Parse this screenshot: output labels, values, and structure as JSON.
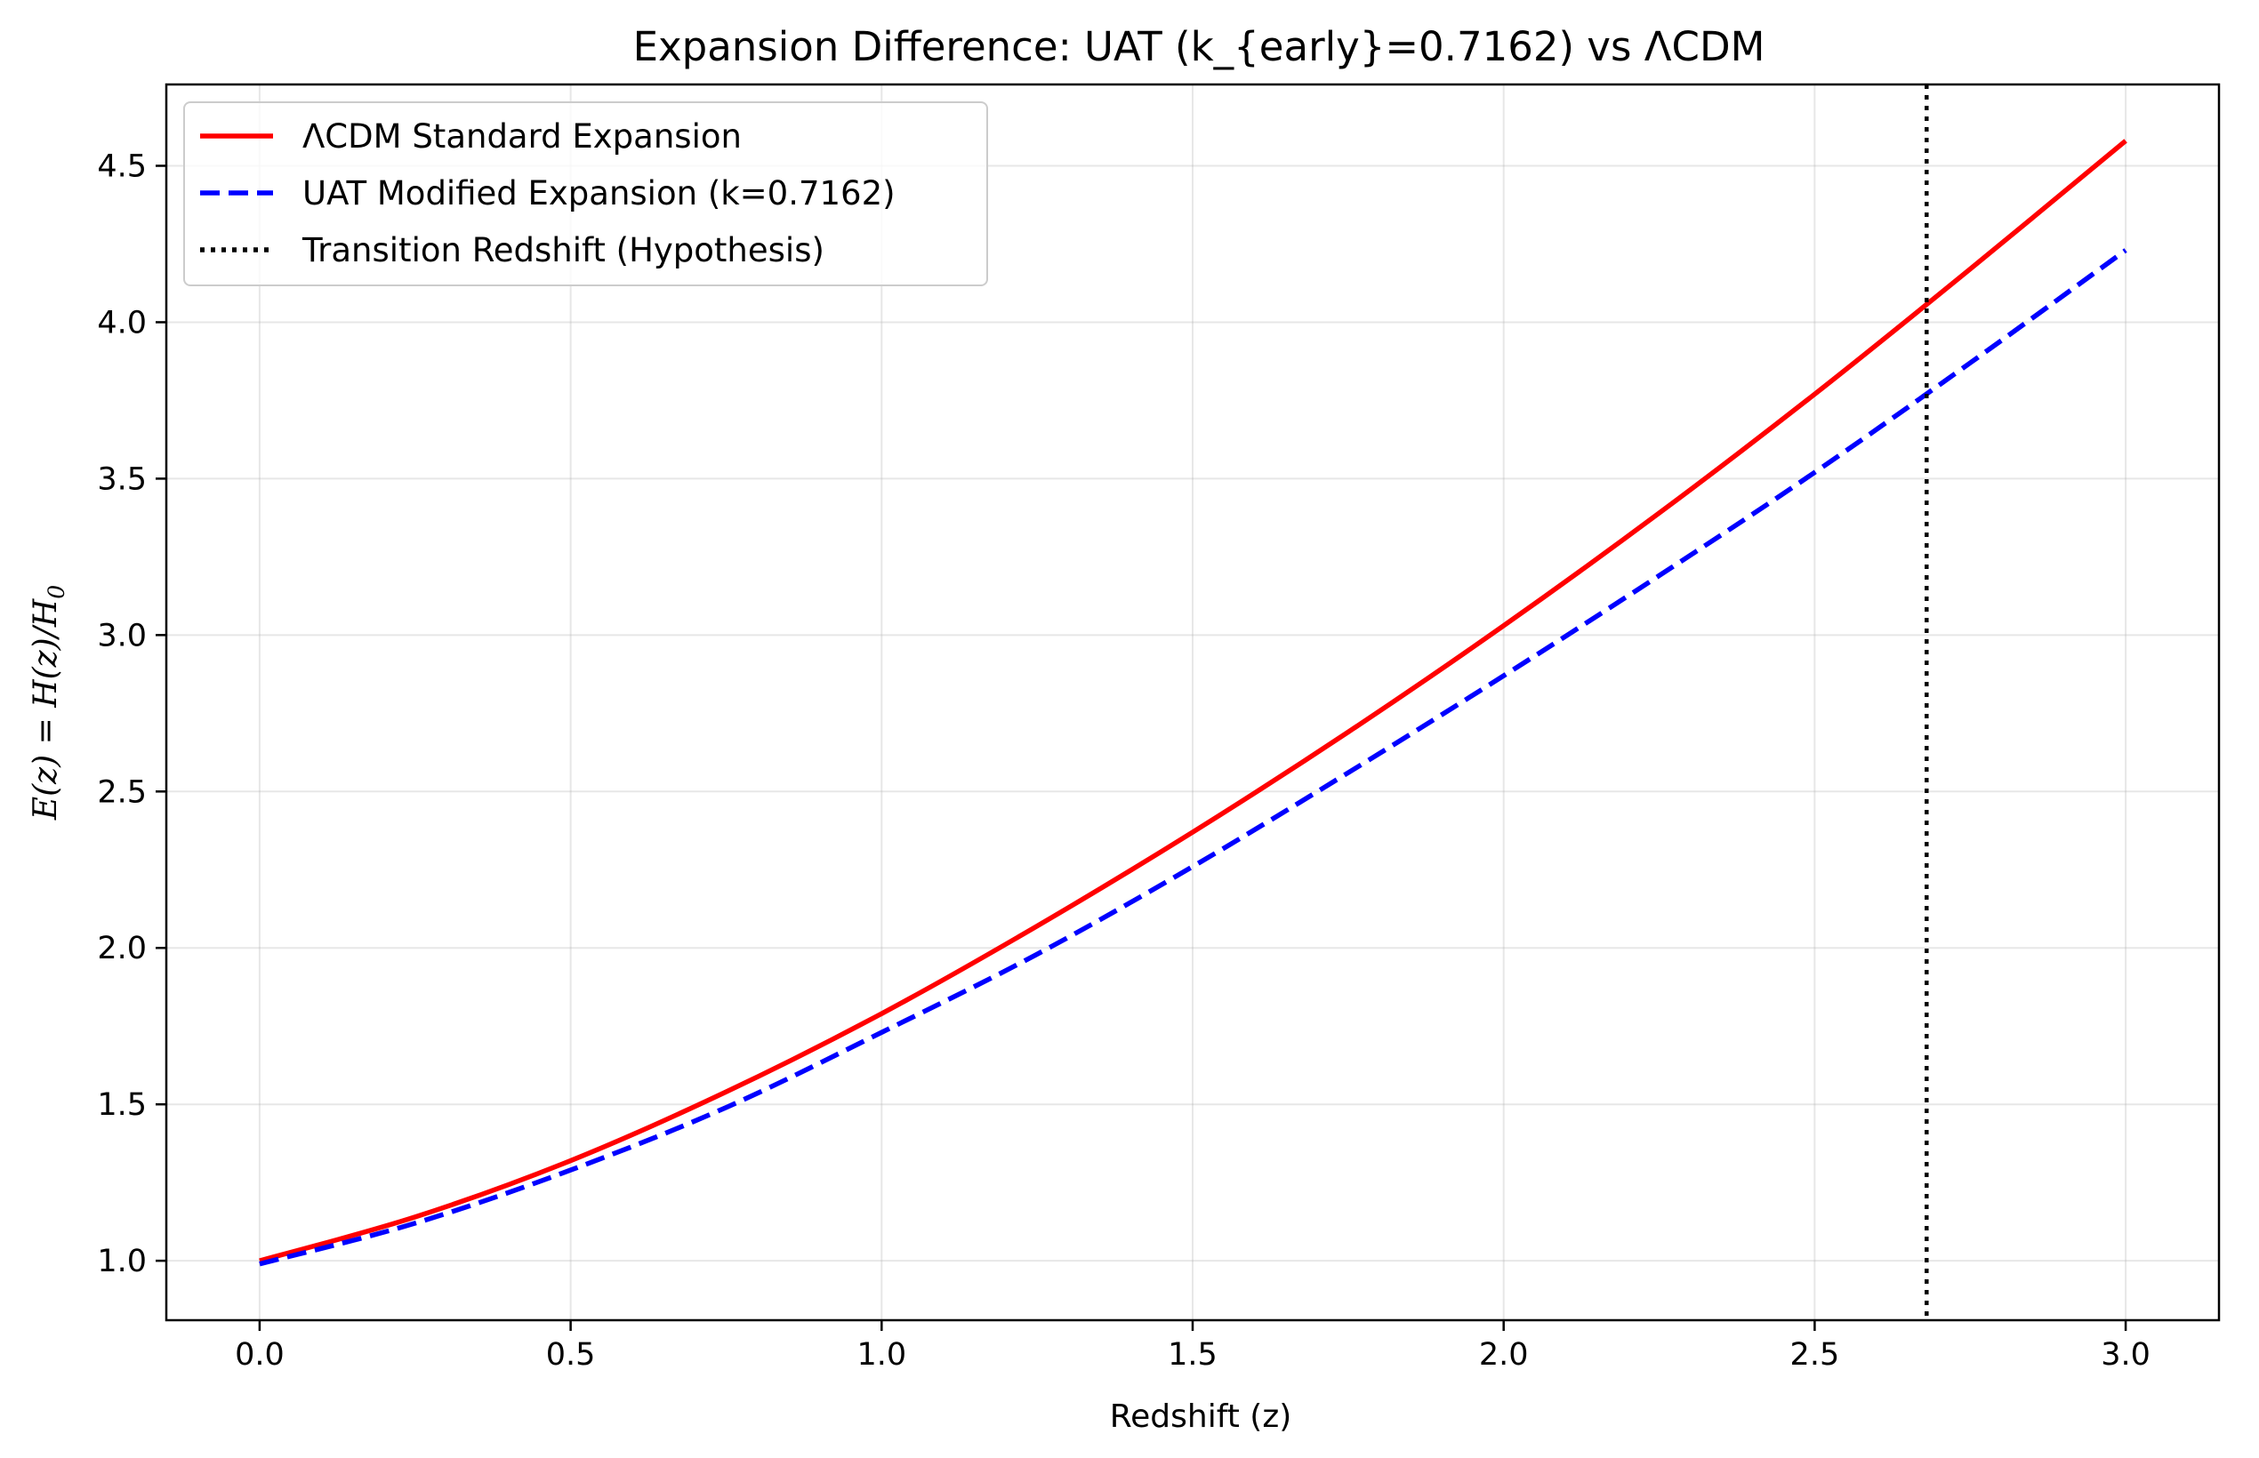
{
  "chart_data": {
    "type": "line",
    "title": "Expansion Difference: UAT (k_{early}=0.7162) vs ΛCDM",
    "xlabel": "Redshift (z)",
    "ylabel": "E(z) = H(z)/H",
    "ylabel_sub": "0",
    "xlim": [
      -0.15,
      3.15
    ],
    "ylim": [
      0.81,
      4.76
    ],
    "xticks": [
      0.0,
      0.5,
      1.0,
      1.5,
      2.0,
      2.5,
      3.0
    ],
    "xtick_labels": [
      "0.0",
      "0.5",
      "1.0",
      "1.5",
      "2.0",
      "2.5",
      "3.0"
    ],
    "yticks": [
      1.0,
      1.5,
      2.0,
      2.5,
      3.0,
      3.5,
      4.0,
      4.5
    ],
    "ytick_labels": [
      "1.0",
      "1.5",
      "2.0",
      "2.5",
      "3.0",
      "3.5",
      "4.0",
      "4.5"
    ],
    "grid": true,
    "legend_position": "top-left",
    "series": [
      {
        "name": "ΛCDM Standard Expansion",
        "color": "#ff0000",
        "style": "solid",
        "x": [
          0.0,
          0.25,
          0.5,
          0.75,
          1.0,
          1.25,
          1.5,
          1.75,
          2.0,
          2.25,
          2.5,
          2.75,
          3.0
        ],
        "y": [
          1.0,
          1.14,
          1.32,
          1.54,
          1.79,
          2.07,
          2.37,
          2.69,
          3.03,
          3.39,
          3.77,
          4.17,
          4.58
        ]
      },
      {
        "name": "UAT Modified Expansion (k=0.7162)",
        "color": "#0000ff",
        "style": "dashed",
        "x": [
          0.0,
          0.25,
          0.5,
          0.75,
          1.0,
          1.25,
          1.5,
          1.75,
          2.0,
          2.25,
          2.5,
          2.75,
          3.0
        ],
        "y": [
          0.99,
          1.12,
          1.29,
          1.49,
          1.73,
          1.98,
          2.26,
          2.56,
          2.87,
          3.19,
          3.52,
          3.87,
          4.23
        ]
      }
    ],
    "vlines": [
      {
        "name": "Transition Redshift (Hypothesis)",
        "x": 2.68,
        "color": "#000000",
        "style": "dotted"
      }
    ]
  }
}
